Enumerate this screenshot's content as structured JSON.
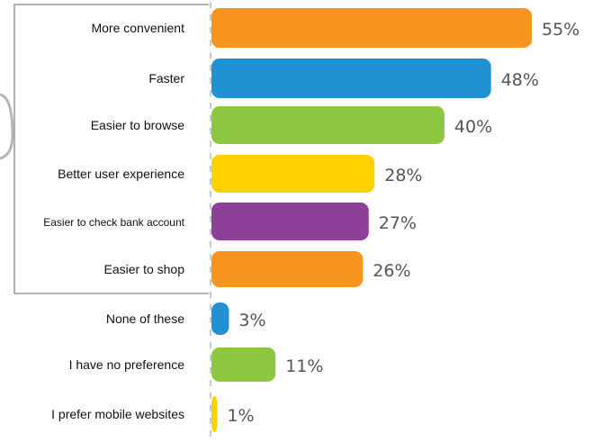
{
  "chart_data": {
    "type": "bar",
    "orientation": "horizontal",
    "categories": [
      "More convenient",
      "Faster",
      "Easier to browse",
      "Better user experience",
      "Easier to check bank account",
      "Easier to shop",
      "None of these",
      "I have no preference",
      "I prefer mobile websites"
    ],
    "values": [
      55,
      48,
      40,
      28,
      27,
      26,
      3,
      11,
      1
    ],
    "value_labels": [
      "55%",
      "48%",
      "40%",
      "28%",
      "27%",
      "26%",
      "3%",
      "11%",
      "1%"
    ],
    "colors": [
      "#f7941d",
      "#2291d3",
      "#8dc63f",
      "#ffd100",
      "#8e3f97",
      "#f7941d",
      "#2291d3",
      "#8dc63f",
      "#ffd100"
    ],
    "group_bracket_categories": 6,
    "xlim": [
      0,
      60
    ],
    "title": "",
    "xlabel": "",
    "ylabel": "",
    "grid": false,
    "legend": "none"
  }
}
